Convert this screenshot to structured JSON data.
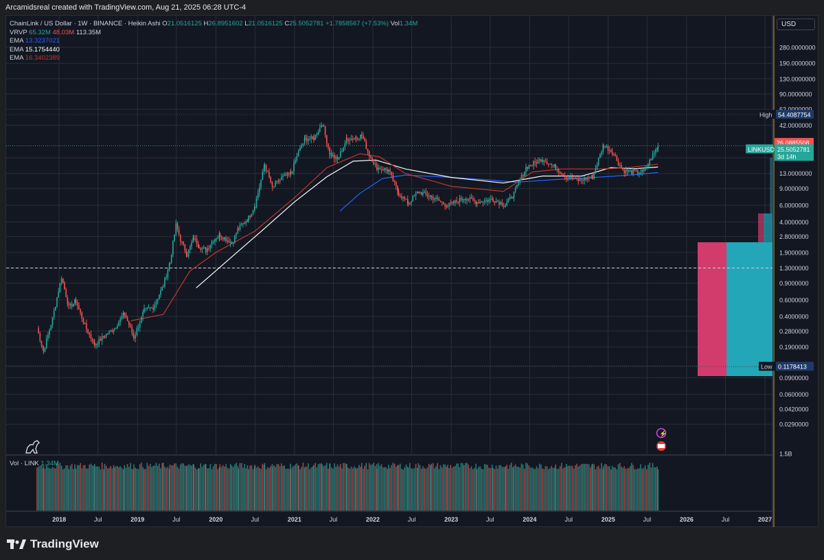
{
  "header": {
    "credit": "Arcamidsreal created with TradingView.com, Aug 21, 2025 06:28 UTC-4"
  },
  "legend": {
    "symbol": "ChainLink / US Dollar · 1W · BINANCE · Heikin Ashi",
    "o_label": "O",
    "o_value": "21.0516125",
    "h_label": "H",
    "h_value": "26.8951602",
    "l_label": "L",
    "l_value": "21.0516125",
    "c_label": "C",
    "c_value": "25.5052781",
    "change": "+1.7858567 (+7.53%)",
    "vol_label": "Vol",
    "vol_value": "1.34M",
    "vrvp_label": "VRVP",
    "vrvp_up": "65.32M",
    "vrvp_down": "48.03M",
    "vrvp_total": "113.35M",
    "emas": [
      {
        "label": "EMA",
        "value": "13.3237021",
        "color": "#2962ff"
      },
      {
        "label": "EMA",
        "value": "15.1754440",
        "color": "#ffffff"
      },
      {
        "label": "EMA",
        "value": "16.3402389",
        "color": "#c0392b"
      }
    ]
  },
  "currency": "USD",
  "price_scale": {
    "ticks": [
      "280.0000000",
      "190.0000000",
      "130.0000000",
      "90.0000000",
      "62.0000000",
      "42.0000000",
      "19.0000000",
      "13.0000000",
      "9.0000000",
      "6.0000000",
      "4.0000000",
      "2.8000000",
      "1.9000000",
      "1.3000000",
      "0.9000000",
      "0.6000000",
      "0.4000000",
      "0.2800000",
      "0.1900000",
      "0.1200000",
      "0.0900000",
      "0.0600000",
      "0.0420000",
      "0.0290000",
      "1.5B"
    ],
    "high_label": "High",
    "high_value": "54.4087754",
    "low_label": "Low",
    "low_value": "0.1178413",
    "prev_close": "26.0885508",
    "symbol_tag": "LINKUSD",
    "last_price": "25.5052781",
    "countdown": "3d 14h"
  },
  "time_axis": [
    "2018",
    "Jul",
    "2019",
    "Jul",
    "2020",
    "Jul",
    "2021",
    "Jul",
    "2022",
    "Jul",
    "2023",
    "Jul",
    "2024",
    "Jul",
    "2025",
    "Jul",
    "2026",
    "Jul",
    "2027"
  ],
  "volume_legend": {
    "label": "Vol · LINK",
    "value": "1.34M"
  },
  "colors": {
    "up": "#26a69a",
    "down": "#ef5350",
    "ema_fast": "#2962ff",
    "ema_mid": "#ffffff",
    "ema_slow": "#c0392b",
    "vrvp_down": "#d13c6c",
    "vrvp_up": "#22a6b8"
  },
  "brand": "TradingView",
  "chart_data": {
    "type": "candlestick",
    "title": "ChainLink / US Dollar · 1W · BINANCE · Heikin Ashi",
    "y_scale": "log",
    "ylim": [
      0.025,
      320
    ],
    "x_range": [
      "2017-09-01",
      "2027-01-20"
    ],
    "grid": true,
    "series": [
      {
        "name": "LINKUSD",
        "type": "heikin-ashi",
        "points": [
          [
            "2017-09-20",
            0.3
          ],
          [
            "2017-10-20",
            0.17
          ],
          [
            "2017-12-01",
            0.38
          ],
          [
            "2018-01-12",
            1.05
          ],
          [
            "2018-02-15",
            0.5
          ],
          [
            "2018-03-20",
            0.58
          ],
          [
            "2018-05-01",
            0.32
          ],
          [
            "2018-06-15",
            0.2
          ],
          [
            "2018-08-01",
            0.25
          ],
          [
            "2018-09-15",
            0.3
          ],
          [
            "2018-11-01",
            0.43
          ],
          [
            "2018-12-15",
            0.24
          ],
          [
            "2019-02-01",
            0.46
          ],
          [
            "2019-03-15",
            0.5
          ],
          [
            "2019-05-01",
            0.85
          ],
          [
            "2019-06-01",
            1.5
          ],
          [
            "2019-06-29",
            3.7
          ],
          [
            "2019-07-20",
            2.6
          ],
          [
            "2019-08-20",
            1.8
          ],
          [
            "2019-09-20",
            2.7
          ],
          [
            "2019-10-15",
            2.2
          ],
          [
            "2019-11-15",
            2.0
          ],
          [
            "2019-12-20",
            2.6
          ],
          [
            "2020-01-20",
            2.9
          ],
          [
            "2020-03-15",
            2.4
          ],
          [
            "2020-04-15",
            3.4
          ],
          [
            "2020-06-01",
            4.4
          ],
          [
            "2020-07-01",
            6.0
          ],
          [
            "2020-08-15",
            16.0
          ],
          [
            "2020-09-20",
            9.2
          ],
          [
            "2020-11-01",
            11.6
          ],
          [
            "2020-12-15",
            13.0
          ],
          [
            "2021-01-20",
            22.0
          ],
          [
            "2021-02-20",
            30.0
          ],
          [
            "2021-04-01",
            30.5
          ],
          [
            "2021-05-10",
            44.0
          ],
          [
            "2021-06-15",
            21.0
          ],
          [
            "2021-07-20",
            18.0
          ],
          [
            "2021-09-01",
            30.0
          ],
          [
            "2021-10-15",
            31.0
          ],
          [
            "2021-11-10",
            33.0
          ],
          [
            "2021-12-15",
            20.5
          ],
          [
            "2022-01-20",
            15.0
          ],
          [
            "2022-03-15",
            14.0
          ],
          [
            "2022-05-01",
            8.0
          ],
          [
            "2022-06-15",
            6.3
          ],
          [
            "2022-08-01",
            8.3
          ],
          [
            "2022-10-01",
            7.4
          ],
          [
            "2022-12-15",
            5.9
          ],
          [
            "2023-03-01",
            7.2
          ],
          [
            "2023-05-01",
            6.5
          ],
          [
            "2023-07-15",
            6.9
          ],
          [
            "2023-09-10",
            6.0
          ],
          [
            "2023-10-20",
            8.0
          ],
          [
            "2023-12-15",
            15.0
          ],
          [
            "2024-03-01",
            18.6
          ],
          [
            "2024-05-01",
            15.0
          ],
          [
            "2024-06-20",
            12.0
          ],
          [
            "2024-08-15",
            11.0
          ],
          [
            "2024-10-20",
            12.0
          ],
          [
            "2024-12-10",
            26.0
          ],
          [
            "2025-01-20",
            22.0
          ],
          [
            "2025-03-10",
            14.0
          ],
          [
            "2025-04-20",
            13.5
          ],
          [
            "2025-06-15",
            13.5
          ],
          [
            "2025-08-21",
            25.5
          ]
        ]
      },
      {
        "name": "EMA",
        "value": "13.3237021",
        "points": [
          [
            "2021-08-01",
            5.2
          ],
          [
            "2021-11-01",
            8.0
          ],
          [
            "2022-02-15",
            11.5
          ],
          [
            "2022-06-01",
            12.5
          ],
          [
            "2022-11-01",
            12.0
          ],
          [
            "2023-06-01",
            11.2
          ],
          [
            "2023-11-01",
            10.5
          ],
          [
            "2024-05-01",
            11.2
          ],
          [
            "2024-11-01",
            11.8
          ],
          [
            "2025-05-01",
            12.6
          ],
          [
            "2025-08-21",
            13.3
          ]
        ]
      },
      {
        "name": "EMA",
        "value": "15.1754440",
        "points": [
          [
            "2019-10-01",
            0.8
          ],
          [
            "2020-03-01",
            1.6
          ],
          [
            "2020-08-01",
            3.2
          ],
          [
            "2021-01-01",
            6.5
          ],
          [
            "2021-06-01",
            12.0
          ],
          [
            "2021-10-01",
            17.5
          ],
          [
            "2022-01-15",
            18.0
          ],
          [
            "2022-06-01",
            14.5
          ],
          [
            "2023-01-01",
            11.8
          ],
          [
            "2023-09-01",
            10.3
          ],
          [
            "2024-03-01",
            12.2
          ],
          [
            "2024-09-01",
            12.2
          ],
          [
            "2025-01-15",
            15.0
          ],
          [
            "2025-05-01",
            14.6
          ],
          [
            "2025-08-21",
            15.2
          ]
        ]
      },
      {
        "name": "EMA",
        "value": "16.3402389",
        "points": [
          [
            "2018-12-01",
            0.36
          ],
          [
            "2019-05-01",
            0.42
          ],
          [
            "2019-09-01",
            1.2
          ],
          [
            "2020-01-01",
            1.9
          ],
          [
            "2020-07-01",
            3.2
          ],
          [
            "2021-01-01",
            7.2
          ],
          [
            "2021-06-01",
            15.0
          ],
          [
            "2021-11-01",
            21.0
          ],
          [
            "2022-02-01",
            19.5
          ],
          [
            "2022-06-01",
            13.0
          ],
          [
            "2023-01-01",
            9.5
          ],
          [
            "2023-09-01",
            8.4
          ],
          [
            "2024-01-15",
            13.5
          ],
          [
            "2024-06-01",
            14.5
          ],
          [
            "2024-12-01",
            14.5
          ],
          [
            "2025-04-01",
            15.0
          ],
          [
            "2025-08-21",
            16.3
          ]
        ]
      }
    ]
  }
}
